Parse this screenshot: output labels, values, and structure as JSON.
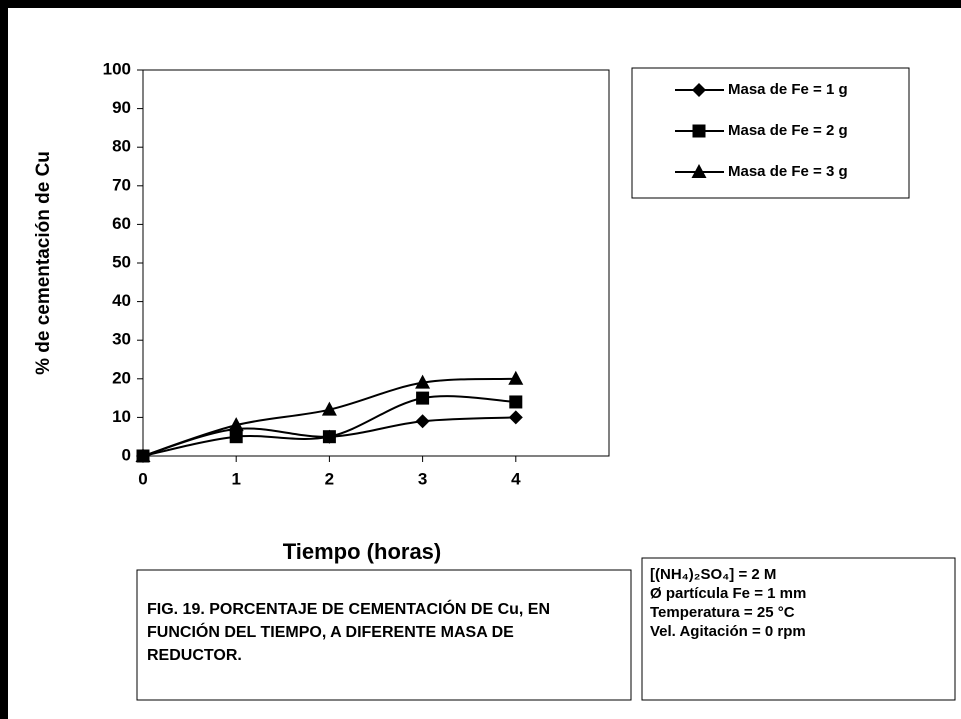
{
  "chart_data": {
    "type": "line",
    "y_label": "% de cementación de Cu",
    "x_label": "Tiempo (horas)",
    "x": [
      0,
      1,
      2,
      3,
      4
    ],
    "xlim": [
      0,
      5
    ],
    "xticks": [
      0,
      1,
      2,
      3,
      4
    ],
    "ylim": [
      0,
      100
    ],
    "yticks": [
      0,
      10,
      20,
      30,
      40,
      50,
      60,
      70,
      80,
      90,
      100
    ],
    "series": [
      {
        "name": "Masa de Fe = 1 g",
        "color": "#000000",
        "marker": "diamond",
        "values": [
          0,
          7,
          5,
          9,
          10
        ]
      },
      {
        "name": "Masa de Fe = 2 g",
        "color": "#000000",
        "marker": "square",
        "values": [
          0,
          5,
          5,
          15,
          14
        ]
      },
      {
        "name": "Masa de Fe = 3 g",
        "color": "#000000",
        "marker": "triangle",
        "values": [
          0,
          8,
          12,
          19,
          20
        ]
      }
    ],
    "caption": [
      "FIG. 19. PORCENTAJE DE CEMENTACIÓN DE Cu, EN",
      "FUNCIÓN DEL TIEMPO, A DIFERENTE MASA DE",
      "REDUCTOR."
    ],
    "conditions": [
      "[(NH₄)₂SO₄] = 2 M",
      "Ø partícula Fe = 1 mm",
      "Temperatura = 25 °C",
      "Vel. Agitación = 0 rpm"
    ]
  }
}
